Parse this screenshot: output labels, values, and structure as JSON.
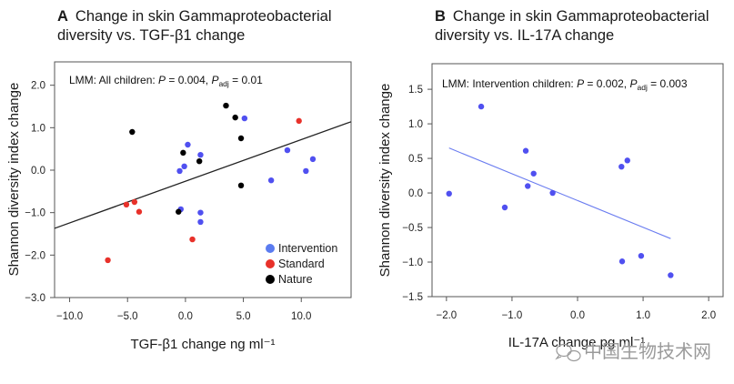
{
  "chart_data": [
    {
      "type": "scatter",
      "panel_letter": "A",
      "title_lines": [
        "Change in skin Gammaproteobacterial",
        "diversity vs. TGF-β1 change"
      ],
      "xlabel": "TGF-β1 change ng ml⁻¹",
      "ylabel": "Shannon diversity index change",
      "xlim": [
        -11.3,
        14.3
      ],
      "ylim": [
        -3.0,
        2.55
      ],
      "xticks": [
        -10.0,
        -5.0,
        0.0,
        5.0,
        10.0
      ],
      "xtick_labels": [
        "−10.0",
        "−5.0",
        "0.0",
        "5.0",
        "10.0"
      ],
      "yticks": [
        2.0,
        1.0,
        0.0,
        -1.0,
        -2.0,
        -3.0
      ],
      "ytick_labels": [
        "2.0",
        "1.0",
        "0.0",
        "−1.0",
        "−2.0",
        "−3.0"
      ],
      "grid": false,
      "annotation": {
        "prefix": "LMM: All children: ",
        "p_label": "P",
        "p_value": " = 0.004, ",
        "padj_label": "P",
        "padj_sub": "adj",
        "padj_value": " = 0.01"
      },
      "legend": {
        "position": "bottom-right",
        "entries": [
          {
            "name": "Intervention",
            "color": "#5b7cf0"
          },
          {
            "name": "Standard",
            "color": "#e8312a"
          },
          {
            "name": "Nature",
            "color": "#000000"
          }
        ]
      },
      "fit_line": {
        "x": [
          -11.3,
          14.3
        ],
        "y": [
          -1.37,
          1.14
        ],
        "color": "#222222"
      },
      "series": [
        {
          "name": "Intervention",
          "color": "#5050f0",
          "points": [
            [
              5.1,
              1.22
            ],
            [
              0.2,
              0.6
            ],
            [
              1.3,
              0.36
            ],
            [
              -0.5,
              -0.02
            ],
            [
              -0.1,
              0.09
            ],
            [
              8.8,
              0.47
            ],
            [
              11.0,
              0.26
            ],
            [
              10.4,
              -0.02
            ],
            [
              7.4,
              -0.24
            ],
            [
              -0.4,
              -0.92
            ],
            [
              1.3,
              -1.0
            ],
            [
              1.3,
              -1.22
            ]
          ]
        },
        {
          "name": "Standard",
          "color": "#e8312a",
          "points": [
            [
              9.8,
              1.16
            ],
            [
              -5.1,
              -0.81
            ],
            [
              -4.4,
              -0.75
            ],
            [
              -4.0,
              -0.98
            ],
            [
              -6.7,
              -2.12
            ],
            [
              0.6,
              -1.63
            ]
          ]
        },
        {
          "name": "Nature",
          "color": "#000000",
          "points": [
            [
              3.5,
              1.52
            ],
            [
              4.3,
              1.24
            ],
            [
              4.8,
              0.75
            ],
            [
              4.8,
              -0.36
            ],
            [
              -0.2,
              0.41
            ],
            [
              1.2,
              0.21
            ],
            [
              -4.6,
              0.9
            ],
            [
              -0.6,
              -0.98
            ]
          ]
        }
      ]
    },
    {
      "type": "scatter",
      "panel_letter": "B",
      "title_lines": [
        "Change in skin Gammaproteobacterial",
        "diversity vs. IL-17A change"
      ],
      "xlabel": "IL-17A change pg ml⁻¹",
      "ylabel": "Shannon diversity index change",
      "xlim": [
        -2.22,
        2.22
      ],
      "ylim": [
        -1.5,
        1.87
      ],
      "xticks": [
        -2.0,
        -1.0,
        0.0,
        1.0,
        2.0
      ],
      "xtick_labels": [
        "−2.0",
        "−1.0",
        "0.0",
        "1.0",
        "2.0"
      ],
      "yticks": [
        1.5,
        1.0,
        0.5,
        0.0,
        -0.5,
        -1.0,
        -1.5
      ],
      "ytick_labels": [
        "1.5",
        "1.0",
        "0.5",
        "0.0",
        "−0.5",
        "−1.0",
        "−1.5"
      ],
      "grid": false,
      "annotation": {
        "prefix": "LMM: Intervention children: ",
        "p_label": "P",
        "p_value": " = 0.002, ",
        "padj_label": "P",
        "padj_sub": "adj",
        "padj_value": " = 0.003"
      },
      "fit_line": {
        "x": [
          -1.96,
          1.42
        ],
        "y": [
          0.65,
          -0.66
        ],
        "color": "#6a7cf0"
      },
      "series": [
        {
          "name": "Intervention",
          "color": "#5050f0",
          "points": [
            [
              -1.96,
              -0.01
            ],
            [
              -1.47,
              1.25
            ],
            [
              -0.79,
              0.61
            ],
            [
              -0.67,
              0.28
            ],
            [
              -0.76,
              0.1
            ],
            [
              -1.11,
              -0.21
            ],
            [
              -0.38,
              0.0
            ],
            [
              0.67,
              0.38
            ],
            [
              0.76,
              0.47
            ],
            [
              0.68,
              -0.99
            ],
            [
              0.97,
              -0.91
            ],
            [
              1.42,
              -1.19
            ]
          ]
        }
      ]
    }
  ],
  "watermark": {
    "icon": "wechat-icon",
    "text": "中国生物技术网"
  }
}
